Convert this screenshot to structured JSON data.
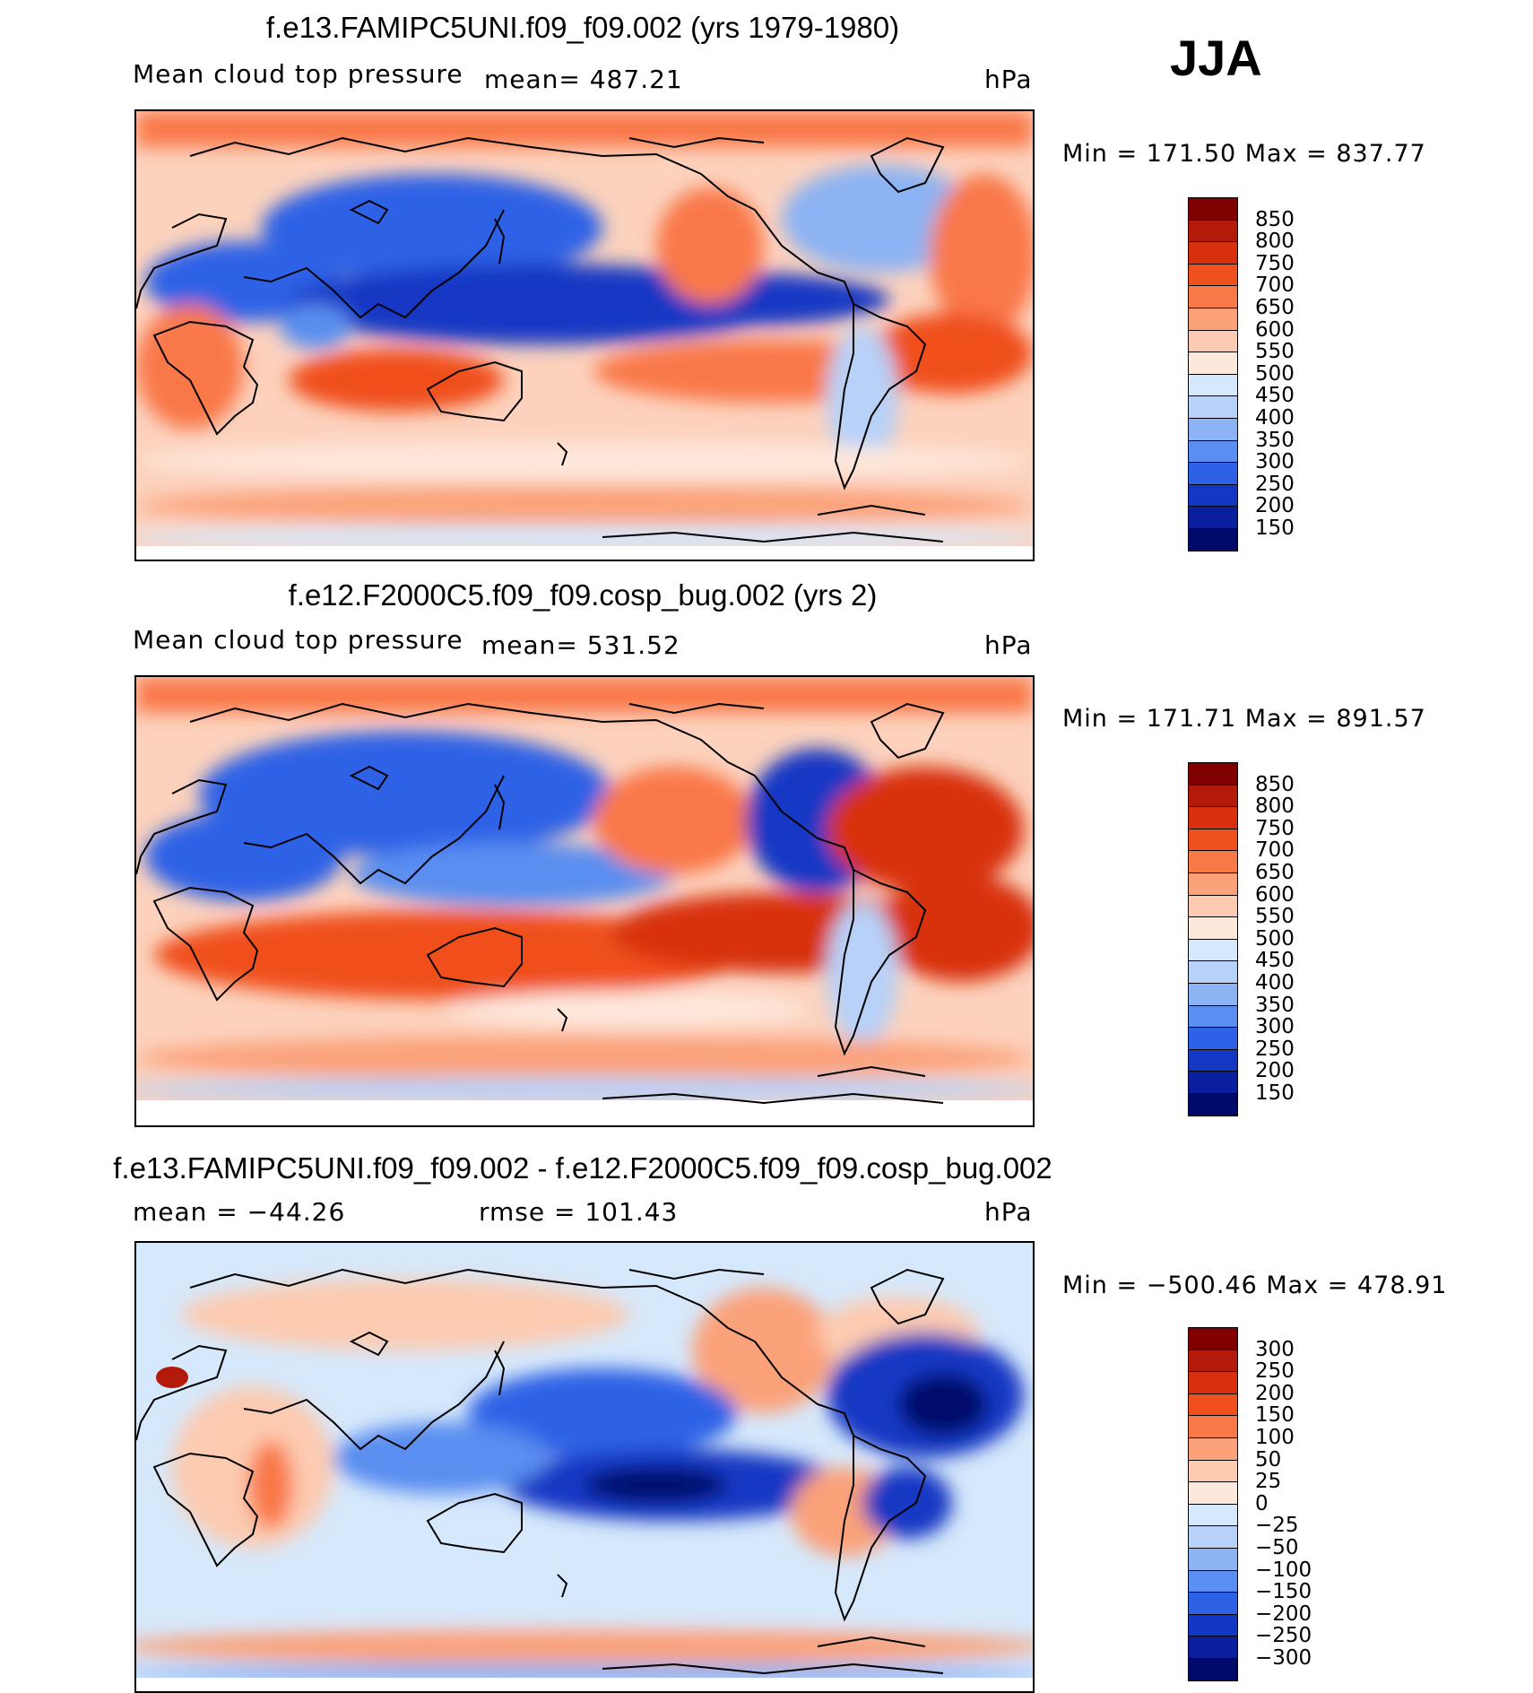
{
  "season": "JJA",
  "panels": [
    {
      "title": "f.e13.FAMIPC5UNI.f09_f09.002 (yrs 1979-1980)",
      "variable": "Mean cloud top pressure",
      "mean_text": "mean=  487.21",
      "units": "hPa",
      "minmax": "Min  =  171.50  Max  =  837.77",
      "colorbar_labels": [
        "850",
        "800",
        "750",
        "700",
        "650",
        "600",
        "550",
        "500",
        "450",
        "400",
        "350",
        "300",
        "250",
        "200",
        "150"
      ],
      "colorbar_colors": [
        "#800000",
        "#b41a0a",
        "#d8300e",
        "#f0501e",
        "#f97848",
        "#fba27a",
        "#fdcbb0",
        "#fee8dc",
        "#d6e8fb",
        "#b7d1f8",
        "#8cb3f3",
        "#5a8ef0",
        "#2d62e6",
        "#1238c4",
        "#0a1f9e",
        "#000a6a"
      ]
    },
    {
      "title": "f.e12.F2000C5.f09_f09.cosp_bug.002 (yrs 2)",
      "variable": "Mean cloud top pressure",
      "mean_text": "mean=  531.52",
      "units": "hPa",
      "minmax": "Min  =  171.71  Max  =  891.57",
      "colorbar_labels": [
        "850",
        "800",
        "750",
        "700",
        "650",
        "600",
        "550",
        "500",
        "450",
        "400",
        "350",
        "300",
        "250",
        "200",
        "150"
      ],
      "colorbar_colors": [
        "#800000",
        "#b41a0a",
        "#d8300e",
        "#f0501e",
        "#f97848",
        "#fba27a",
        "#fdcbb0",
        "#fee8dc",
        "#d6e8fb",
        "#b7d1f8",
        "#8cb3f3",
        "#5a8ef0",
        "#2d62e6",
        "#1238c4",
        "#0a1f9e",
        "#000a6a"
      ]
    },
    {
      "title": "f.e13.FAMIPC5UNI.f09_f09.002 - f.e12.F2000C5.f09_f09.cosp_bug.002",
      "mean_text": "mean  =  −44.26",
      "rmse_text": "rmse  =  101.43",
      "units": "hPa",
      "minmax": "Min  =  −500.46  Max  =  478.91",
      "colorbar_labels": [
        "300",
        "250",
        "200",
        "150",
        "100",
        "50",
        "25",
        "0",
        "−25",
        "−50",
        "−100",
        "−150",
        "−200",
        "−250",
        "−300"
      ],
      "colorbar_colors": [
        "#800000",
        "#b41a0a",
        "#d8300e",
        "#f0501e",
        "#f97848",
        "#fba27a",
        "#fdcbb0",
        "#fee8dc",
        "#d6e8fb",
        "#b7d1f8",
        "#8cb3f3",
        "#5a8ef0",
        "#2d62e6",
        "#1238c4",
        "#0a1f9e",
        "#000a6a"
      ]
    }
  ]
}
